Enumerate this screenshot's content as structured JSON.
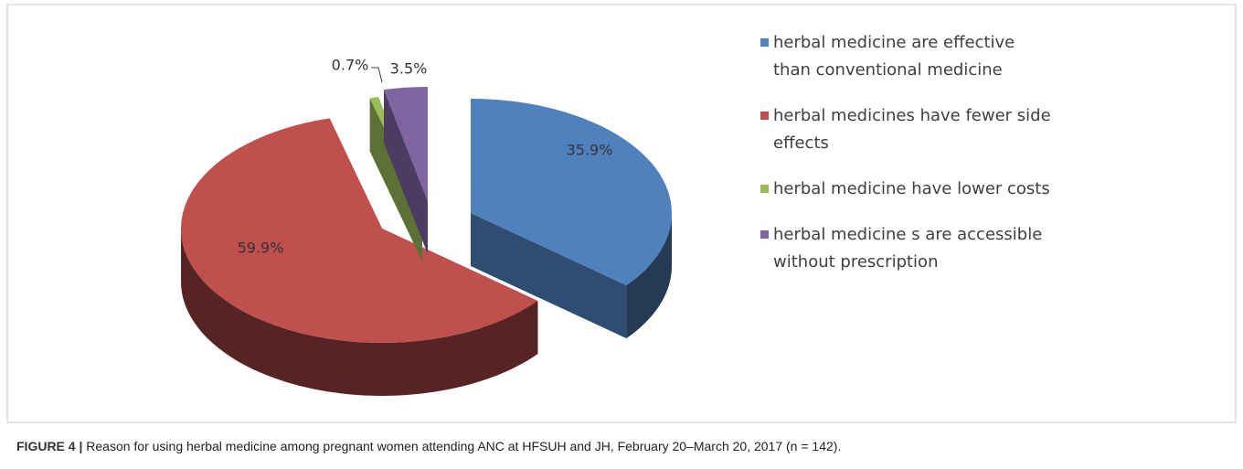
{
  "chart_data": {
    "type": "pie",
    "figure_label": "FIGURE 4 |",
    "caption": "Reason for using herbal medicine among pregnant women attending ANC at HFSUH and JH, February 20–March 20, 2017 (n = 142).",
    "categories": [
      "herbal medicine are effective than conventional medicine",
      "herbal medicines have fewer side effects",
      "herbal medicine have lower costs",
      "herbal medicine s are accessible without prescription"
    ],
    "values": [
      35.9,
      59.9,
      0.7,
      3.5
    ],
    "value_labels": [
      "35.9%",
      "59.9%",
      "0.7%",
      "3.5%"
    ],
    "colors": [
      "#4f81bd",
      "#c0504d",
      "#9bbb59",
      "#8064a2"
    ],
    "legend": "right"
  }
}
